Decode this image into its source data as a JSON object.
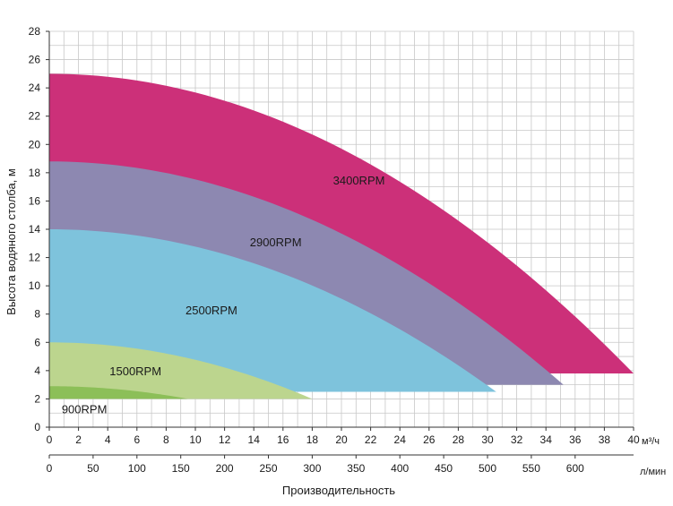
{
  "chart_data": {
    "type": "area",
    "title": "",
    "ylabel": "Высота водяного столба, м",
    "xlabel": "Производительность",
    "x_unit": "м³/ч",
    "x2_unit": "л/мин",
    "ylim": [
      0,
      28
    ],
    "xlim": [
      0,
      40
    ],
    "x2lim": [
      0,
      666.67
    ],
    "y_ticks": [
      "0",
      "2",
      "4",
      "6",
      "8",
      "10",
      "12",
      "14",
      "16",
      "18",
      "20",
      "22",
      "24",
      "26",
      "28"
    ],
    "x_ticks": [
      "0",
      "2",
      "4",
      "6",
      "8",
      "10",
      "12",
      "14",
      "16",
      "18",
      "20",
      "22",
      "24",
      "26",
      "28",
      "30",
      "32",
      "34",
      "36",
      "38",
      "40"
    ],
    "x2_ticks": [
      "0",
      "50",
      "100",
      "150",
      "200",
      "250",
      "300",
      "350",
      "400",
      "450",
      "500",
      "550",
      "600"
    ],
    "grid": true,
    "series": [
      {
        "name": "3400RPM",
        "color": "#cc3079",
        "max_head": 25.0,
        "max_flow": 40.0,
        "min_head": 3.8,
        "label_x": 21.2,
        "label_y": 17.4
      },
      {
        "name": "2900RPM",
        "color": "#8d88b1",
        "max_head": 18.8,
        "max_flow": 35.2,
        "min_head": 3.0,
        "label_x": 15.5,
        "label_y": 13.0
      },
      {
        "name": "2500RPM",
        "color": "#7ec3dc",
        "max_head": 14.0,
        "max_flow": 30.6,
        "min_head": 2.5,
        "label_x": 11.1,
        "label_y": 8.2
      },
      {
        "name": "1500RPM",
        "color": "#bcd58e",
        "max_head": 6.0,
        "max_flow": 18.0,
        "min_head": 2.0,
        "label_x": 5.9,
        "label_y": 3.9
      },
      {
        "name": "900RPM",
        "color": "#8cbf58",
        "max_head": 2.9,
        "max_flow": 9.5,
        "min_head": 2.0,
        "label_x": 2.4,
        "label_y": 1.2
      }
    ]
  }
}
